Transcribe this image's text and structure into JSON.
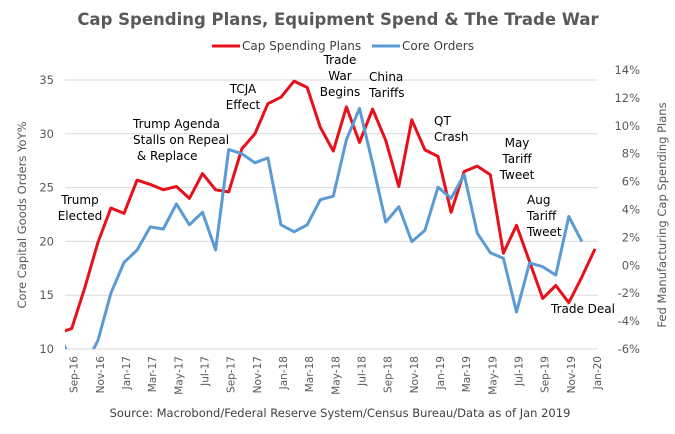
{
  "chart_data": {
    "type": "line",
    "title": "Cap Spending Plans, Equipment Spend & The Trade War",
    "source": "Source: Macrobond/Federal Reserve System/Census Bureau/Data as of Jan 2019",
    "ylabel_left": "Core Capital Goods Orders YoY%",
    "ylabel_right": "Fed Manufacturing Cap Spending Plans",
    "ylim_left": [
      10,
      35
    ],
    "yticks_left": [
      "10",
      "15",
      "20",
      "25",
      "30",
      "35"
    ],
    "ylim_right": [
      -6,
      14
    ],
    "yticks_right": [
      "-6%",
      "-4%",
      "-2%",
      "0%",
      "2%",
      "4%",
      "6%",
      "8%",
      "10%",
      "12%",
      "14%"
    ],
    "grid": true,
    "legend_position": "top",
    "x": [
      "Aug-16",
      "Sep-16",
      "Oct-16",
      "Nov-16",
      "Dec-16",
      "Jan-17",
      "Feb-17",
      "Mar-17",
      "Apr-17",
      "May-17",
      "Jun-17",
      "Jul-17",
      "Aug-17",
      "Sep-17",
      "Oct-17",
      "Nov-17",
      "Dec-17",
      "Jan-18",
      "Feb-18",
      "Mar-18",
      "Apr-18",
      "May-18",
      "Jun-18",
      "Jul-18",
      "Aug-18",
      "Sep-18",
      "Oct-18",
      "Nov-18",
      "Dec-18",
      "Jan-19",
      "Feb-19",
      "Mar-19",
      "Apr-19",
      "May-19",
      "Jun-19",
      "Jul-19",
      "Aug-19",
      "Sep-19",
      "Oct-19",
      "Nov-19",
      "Dec-19",
      "Jan-20"
    ],
    "xtick_labels": [
      "Sep-16",
      "Nov-16",
      "Jan-17",
      "Mar-17",
      "May-17",
      "Jul-17",
      "Sep-17",
      "Nov-17",
      "Jan-18",
      "Mar-18",
      "May-18",
      "Jul-18",
      "Sep-18",
      "Nov-18",
      "Jan-19",
      "Mar-19",
      "May-19",
      "Jul-19",
      "Sep-19",
      "Nov-19",
      "Jan-20"
    ],
    "series": [
      {
        "name": "Cap Spending Plans",
        "axis": "left",
        "color": "#e8101a",
        "values": [
          11.5,
          11.9,
          15.7,
          19.9,
          23.1,
          22.6,
          25.7,
          25.3,
          24.8,
          25.1,
          24.0,
          26.3,
          24.8,
          24.6,
          28.6,
          30.0,
          32.8,
          33.4,
          34.9,
          34.3,
          30.6,
          28.4,
          32.5,
          29.2,
          32.3,
          29.4,
          25.1,
          31.3,
          28.5,
          27.9,
          22.7,
          26.5,
          27.0,
          26.2,
          18.9,
          21.5,
          18.1,
          14.7,
          15.9,
          14.3,
          16.7,
          19.3
        ]
      },
      {
        "name": "Core Orders",
        "axis": "right",
        "color": "#5b9bd5",
        "values": [
          -4.8,
          -7.0,
          -7.2,
          -5.4,
          -2.0,
          0.2,
          1.1,
          2.75,
          2.6,
          4.4,
          2.9,
          3.8,
          1.1,
          8.3,
          8.0,
          7.35,
          7.7,
          2.9,
          2.4,
          2.9,
          4.7,
          4.95,
          9.0,
          11.25,
          7.3,
          3.1,
          4.2,
          1.7,
          2.5,
          5.6,
          4.8,
          6.5,
          2.3,
          0.9,
          0.5,
          -3.35,
          0.17,
          -0.1,
          -0.7,
          3.5,
          1.7,
          null
        ]
      }
    ],
    "annotations": [
      {
        "lines": [
          "Trump",
          "Elected"
        ],
        "at": "Nov-16"
      },
      {
        "lines": [
          "Trump Agenda",
          "Stalls on Repeal",
          " & Replace"
        ],
        "at": "Mar-17"
      },
      {
        "lines": [
          "TCJA",
          "Effect"
        ],
        "at": "Nov-17"
      },
      {
        "lines": [
          "Trade",
          "War",
          "Begins"
        ],
        "at": "May-18"
      },
      {
        "lines": [
          "China",
          "Tariffs"
        ],
        "at": "Aug-18"
      },
      {
        "lines": [
          "QT",
          "Crash"
        ],
        "at": "Jan-19"
      },
      {
        "lines": [
          "May",
          "Tariff",
          "Tweet"
        ],
        "at": "May-19"
      },
      {
        "lines": [
          "Aug",
          "Tariff",
          "Tweet"
        ],
        "at": "Aug-19"
      },
      {
        "lines": [
          "Trade Deal"
        ],
        "at": "Nov-19"
      }
    ]
  }
}
